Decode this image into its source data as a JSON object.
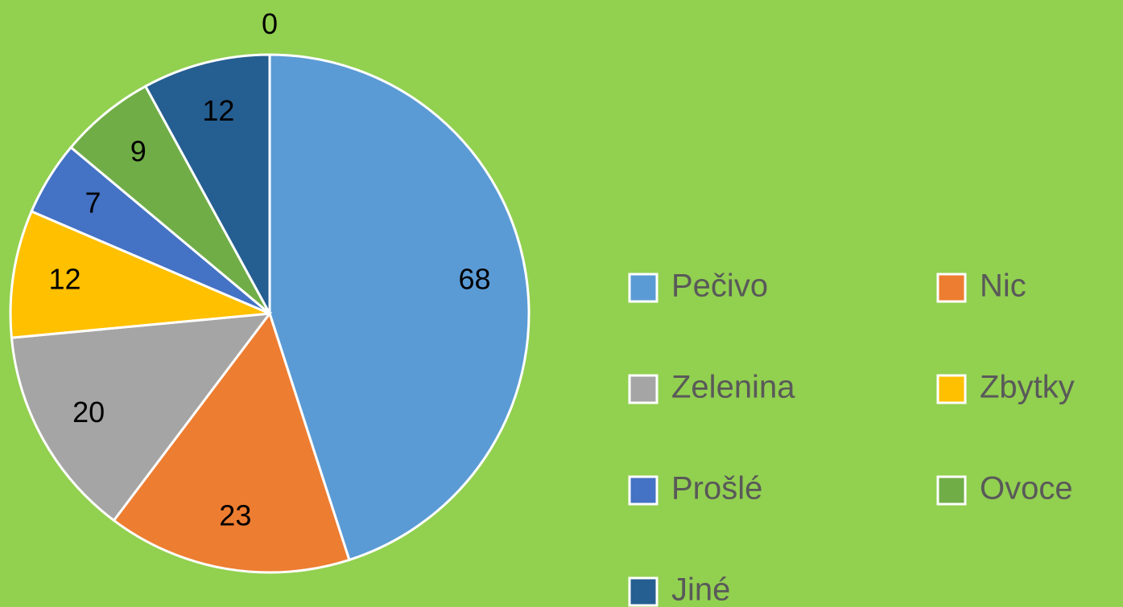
{
  "chart_data": {
    "type": "pie",
    "categories": [
      "Pečivo",
      "Nic",
      "Zelenina",
      "Zbytky",
      "Prošlé",
      "Ovoce",
      "Jiné",
      null
    ],
    "values": [
      68,
      23,
      20,
      12,
      7,
      9,
      12,
      0
    ],
    "colors": [
      "#5b9bd5",
      "#ed7d31",
      "#a5a5a5",
      "#ffc000",
      "#4472c4",
      "#70ad47",
      "#255e91",
      "#9e480e"
    ],
    "legend": "right"
  }
}
